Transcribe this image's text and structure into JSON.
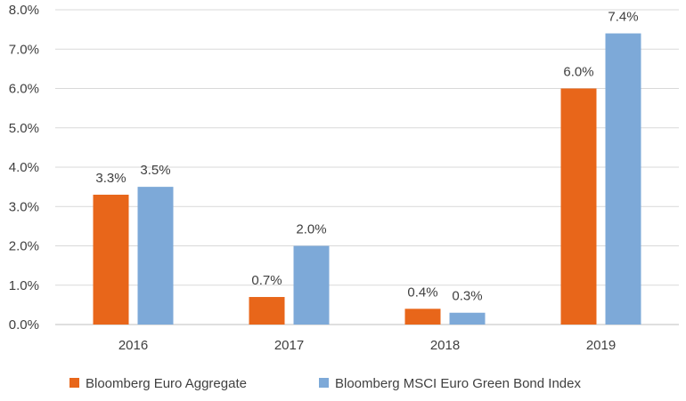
{
  "chart_data": {
    "type": "bar",
    "categories": [
      "2016",
      "2017",
      "2018",
      "2019"
    ],
    "series": [
      {
        "name": "Bloomberg Euro Aggregate",
        "color": "#E8661A",
        "values": [
          3.3,
          0.7,
          0.4,
          6.0
        ],
        "labels": [
          "3.3%",
          "0.7%",
          "0.4%",
          "6.0%"
        ]
      },
      {
        "name": "Bloomberg MSCI Euro Green Bond Index",
        "color": "#7DA9D8",
        "values": [
          3.5,
          2.0,
          0.3,
          7.4
        ],
        "labels": [
          "3.5%",
          "2.0%",
          "0.3%",
          "7.4%"
        ]
      }
    ],
    "ylim": [
      0,
      8
    ],
    "yticks": [
      0,
      1,
      2,
      3,
      4,
      5,
      6,
      7,
      8
    ],
    "ytick_labels": [
      "0.0%",
      "1.0%",
      "2.0%",
      "3.0%",
      "4.0%",
      "5.0%",
      "6.0%",
      "7.0%",
      "8.0%"
    ],
    "grid": true,
    "gridline_color": "#D9D9D9",
    "legend_position": "bottom",
    "title": "",
    "xlabel": "",
    "ylabel": ""
  }
}
